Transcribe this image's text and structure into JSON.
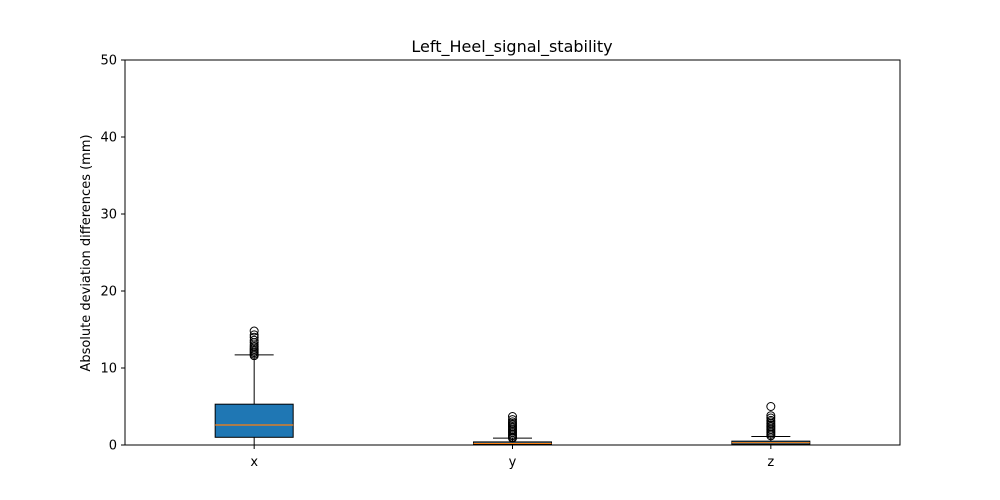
{
  "chart_data": {
    "type": "boxplot",
    "title": "Left_Heel_signal_stability",
    "xlabel": "",
    "ylabel": "Absolute deviation differences (mm)",
    "ylim": [
      0,
      50
    ],
    "yticks": [
      "0",
      "10",
      "20",
      "30",
      "40",
      "50"
    ],
    "categories": [
      "x",
      "y",
      "z"
    ],
    "grid": false,
    "boxes": [
      {
        "category": "x",
        "color": "#1f77b4",
        "median_color": "#ff7f0e",
        "whisker_low": 0,
        "q1": 1.0,
        "median": 2.6,
        "q3": 5.3,
        "whisker_high": 11.7,
        "outliers": [
          11.6,
          11.8,
          12.0,
          12.2,
          12.4,
          12.6,
          12.8,
          13.0,
          13.3,
          13.6,
          14.0,
          14.3,
          14.8
        ]
      },
      {
        "category": "y",
        "color": "#1f77b4",
        "median_color": "#ff7f0e",
        "whisker_low": 0,
        "q1": 0.1,
        "median": 0.2,
        "q3": 0.4,
        "whisker_high": 0.9,
        "outliers": [
          0.9,
          1.0,
          1.2,
          1.4,
          1.6,
          1.8,
          2.0,
          2.2,
          2.4,
          2.6,
          2.8,
          3.0,
          3.3,
          3.7
        ]
      },
      {
        "category": "z",
        "color": "#1f77b4",
        "median_color": "#ff7f0e",
        "whisker_low": 0,
        "q1": 0.1,
        "median": 0.3,
        "q3": 0.5,
        "whisker_high": 1.1,
        "outliers": [
          1.2,
          1.4,
          1.6,
          1.8,
          2.0,
          2.2,
          2.4,
          2.6,
          2.8,
          3.0,
          3.2,
          3.5,
          3.8,
          5.0
        ]
      }
    ]
  }
}
